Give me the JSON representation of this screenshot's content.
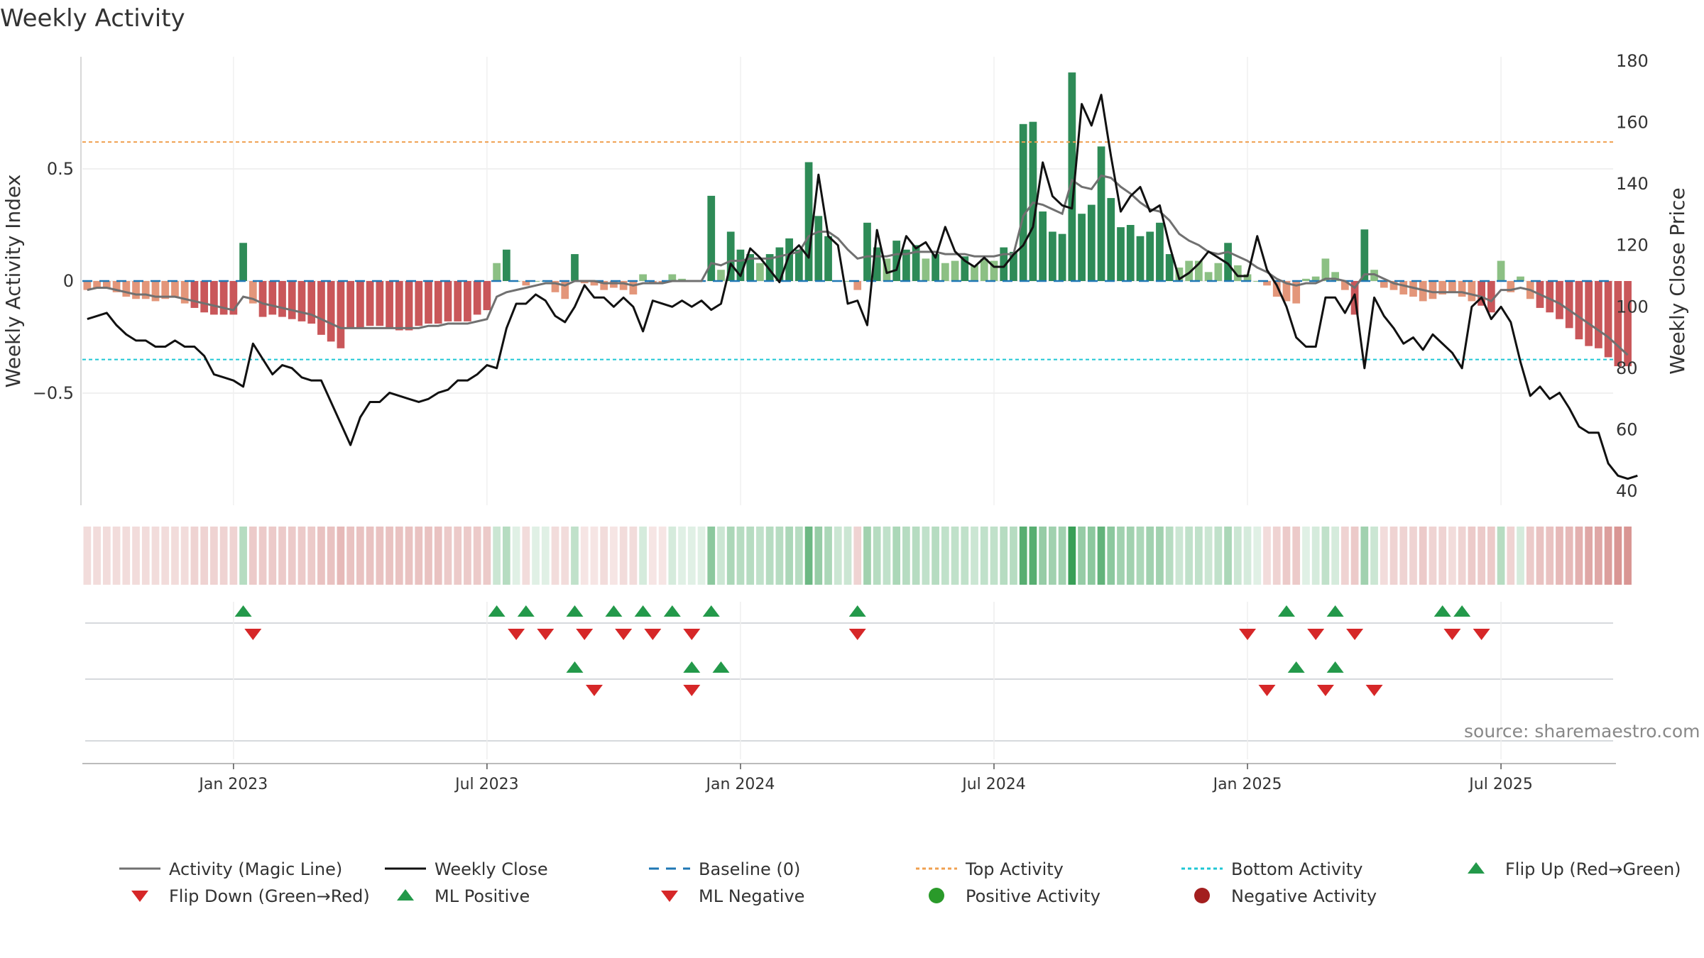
{
  "title": "Weekly Activity",
  "source": "source: sharemaestro.com",
  "chart_data": {
    "type": "bar",
    "title": "Weekly Activity",
    "ylabel": "Weekly Activity Index",
    "y2label": "Weekly Close Price",
    "ylim": [
      -0.99,
      0.99
    ],
    "y2lim": [
      40,
      180
    ],
    "yticks": [
      {
        "v": 0.5,
        "label": "0.5"
      },
      {
        "v": 0,
        "label": "0"
      },
      {
        "v": -0.5,
        "label": "−0.5"
      }
    ],
    "y2ticks": [
      40,
      60,
      80,
      100,
      120,
      140,
      160,
      180
    ],
    "xticks": [
      {
        "week": 15,
        "label": "Jan 2023"
      },
      {
        "week": 41,
        "label": "Jul 2023"
      },
      {
        "week": 67,
        "label": "Jan 2024"
      },
      {
        "week": 93,
        "label": "Jul 2024"
      },
      {
        "week": 119,
        "label": "Jan 2025"
      },
      {
        "week": 145,
        "label": "Jul 2025"
      }
    ],
    "top_activity": 0.62,
    "bottom_activity": -0.35,
    "baseline": 0,
    "weeks": 157,
    "activity": [
      -0.04,
      -0.03,
      -0.03,
      -0.05,
      -0.07,
      -0.08,
      -0.08,
      -0.09,
      -0.08,
      -0.07,
      -0.1,
      -0.12,
      -0.14,
      -0.15,
      -0.15,
      -0.15,
      0.17,
      -0.1,
      -0.16,
      -0.15,
      -0.16,
      -0.17,
      -0.18,
      -0.19,
      -0.24,
      -0.27,
      -0.3,
      -0.21,
      -0.21,
      -0.2,
      -0.2,
      -0.21,
      -0.22,
      -0.22,
      -0.2,
      -0.19,
      -0.19,
      -0.18,
      -0.18,
      -0.18,
      -0.15,
      -0.13,
      0.08,
      0.14,
      0.0,
      -0.02,
      0.0,
      0.0,
      -0.05,
      -0.08,
      0.12,
      -0.01,
      -0.02,
      -0.04,
      -0.03,
      -0.04,
      -0.06,
      0.03,
      -0.01,
      -0.01,
      0.03,
      0.01,
      0.0,
      0.0,
      0.38,
      0.05,
      0.22,
      0.14,
      0.12,
      0.08,
      0.12,
      0.15,
      0.19,
      0.14,
      0.53,
      0.29,
      0.2,
      0.0,
      0.0,
      -0.04,
      0.26,
      0.15,
      0.1,
      0.18,
      0.14,
      0.16,
      0.1,
      0.12,
      0.08,
      0.09,
      0.11,
      0.07,
      0.1,
      0.09,
      0.15,
      0.13,
      0.7,
      0.71,
      0.31,
      0.22,
      0.21,
      0.93,
      0.3,
      0.34,
      0.6,
      0.37,
      0.24,
      0.25,
      0.2,
      0.22,
      0.26,
      0.12,
      0.06,
      0.09,
      0.09,
      0.04,
      0.08,
      0.17,
      0.07,
      0.03,
      0.0,
      -0.02,
      -0.07,
      -0.09,
      -0.1,
      0.01,
      0.02,
      0.1,
      0.04,
      -0.04,
      -0.15,
      0.23,
      0.05,
      -0.03,
      -0.04,
      -0.06,
      -0.07,
      -0.09,
      -0.08,
      -0.06,
      -0.05,
      -0.07,
      -0.09,
      -0.11,
      -0.14,
      0.09,
      -0.05,
      0.02,
      -0.08,
      -0.12,
      -0.14,
      -0.17,
      -0.21,
      -0.26,
      -0.29,
      -0.3,
      -0.34,
      -0.38,
      -0.38
    ],
    "magic_line": [
      -0.04,
      -0.03,
      -0.03,
      -0.04,
      -0.05,
      -0.06,
      -0.06,
      -0.07,
      -0.07,
      -0.07,
      -0.08,
      -0.09,
      -0.1,
      -0.11,
      -0.12,
      -0.13,
      -0.07,
      -0.08,
      -0.1,
      -0.11,
      -0.12,
      -0.13,
      -0.14,
      -0.15,
      -0.17,
      -0.19,
      -0.21,
      -0.21,
      -0.21,
      -0.21,
      -0.21,
      -0.21,
      -0.21,
      -0.21,
      -0.21,
      -0.2,
      -0.2,
      -0.19,
      -0.19,
      -0.19,
      -0.18,
      -0.17,
      -0.07,
      -0.05,
      -0.04,
      -0.03,
      -0.02,
      -0.01,
      -0.01,
      -0.02,
      0.0,
      0.0,
      0.0,
      -0.01,
      -0.01,
      -0.01,
      -0.02,
      -0.01,
      -0.01,
      -0.01,
      0.0,
      0.0,
      0.0,
      0.0,
      0.08,
      0.07,
      0.09,
      0.09,
      0.1,
      0.1,
      0.1,
      0.11,
      0.12,
      0.13,
      0.2,
      0.22,
      0.22,
      0.19,
      0.14,
      0.1,
      0.11,
      0.11,
      0.11,
      0.12,
      0.12,
      0.13,
      0.13,
      0.13,
      0.12,
      0.12,
      0.12,
      0.11,
      0.11,
      0.11,
      0.12,
      0.12,
      0.29,
      0.35,
      0.34,
      0.32,
      0.3,
      0.45,
      0.42,
      0.41,
      0.47,
      0.46,
      0.42,
      0.39,
      0.35,
      0.32,
      0.31,
      0.27,
      0.21,
      0.18,
      0.16,
      0.13,
      0.12,
      0.13,
      0.11,
      0.09,
      0.06,
      0.04,
      0.01,
      -0.01,
      -0.02,
      -0.01,
      -0.01,
      0.01,
      0.01,
      0.0,
      -0.03,
      0.03,
      0.03,
      0.01,
      -0.01,
      -0.02,
      -0.03,
      -0.04,
      -0.05,
      -0.05,
      -0.05,
      -0.05,
      -0.06,
      -0.07,
      -0.09,
      -0.04,
      -0.04,
      -0.03,
      -0.04,
      -0.06,
      -0.08,
      -0.1,
      -0.13,
      -0.16,
      -0.19,
      -0.22,
      -0.25,
      -0.29,
      -0.33
    ],
    "close": [
      96,
      97,
      98,
      94,
      91,
      89,
      89,
      87,
      87,
      89,
      87,
      87,
      84,
      78,
      77,
      76,
      74,
      88,
      83,
      78,
      81,
      80,
      77,
      76,
      76,
      69,
      62,
      55,
      64,
      69,
      69,
      72,
      71,
      70,
      69,
      70,
      72,
      73,
      76,
      76,
      78,
      81,
      80,
      93,
      101,
      101,
      104,
      102,
      97,
      95,
      100,
      107,
      103,
      103,
      100,
      103,
      100,
      92,
      102,
      101,
      100,
      102,
      100,
      102,
      99,
      101,
      114,
      110,
      119,
      116,
      112,
      108,
      117,
      120,
      116,
      143,
      123,
      120,
      101,
      102,
      94,
      125,
      111,
      112,
      123,
      119,
      121,
      116,
      126,
      118,
      115,
      113,
      116,
      113,
      113,
      117,
      120,
      126,
      147,
      136,
      133,
      132,
      166,
      159,
      169,
      149,
      131,
      136,
      139,
      131,
      133,
      120,
      109,
      111,
      114,
      118,
      116,
      114,
      110,
      110,
      123,
      112,
      107,
      100,
      90,
      87,
      87,
      103,
      103,
      98,
      104,
      80,
      103,
      97,
      93,
      88,
      90,
      86,
      91,
      88,
      85,
      80,
      100,
      103,
      96,
      100,
      95,
      82,
      71,
      74,
      70,
      72,
      67,
      61,
      59,
      59,
      49,
      45,
      44,
      45
    ],
    "heat_alpha": [
      0.2,
      0.2,
      0.2,
      0.2,
      0.2,
      0.2,
      0.2,
      0.2,
      0.2,
      0.2,
      0.2,
      0.25,
      0.25,
      0.25,
      0.25,
      0.25,
      0.35,
      0.3,
      0.3,
      0.3,
      0.3,
      0.3,
      0.3,
      0.3,
      0.35,
      0.35,
      0.4,
      0.35,
      0.35,
      0.35,
      0.35,
      0.35,
      0.35,
      0.35,
      0.35,
      0.35,
      0.35,
      0.3,
      0.3,
      0.3,
      0.3,
      0.3,
      0.25,
      0.35,
      0.15,
      0.2,
      0.15,
      0.15,
      0.2,
      0.2,
      0.3,
      0.15,
      0.15,
      0.2,
      0.15,
      0.2,
      0.2,
      0.2,
      0.15,
      0.15,
      0.2,
      0.15,
      0.15,
      0.15,
      0.55,
      0.25,
      0.4,
      0.35,
      0.35,
      0.3,
      0.35,
      0.35,
      0.4,
      0.35,
      0.7,
      0.5,
      0.4,
      0.25,
      0.25,
      0.25,
      0.45,
      0.35,
      0.3,
      0.4,
      0.35,
      0.35,
      0.3,
      0.35,
      0.3,
      0.3,
      0.3,
      0.25,
      0.3,
      0.3,
      0.35,
      0.35,
      0.8,
      0.8,
      0.5,
      0.45,
      0.45,
      0.95,
      0.5,
      0.55,
      0.75,
      0.55,
      0.45,
      0.45,
      0.4,
      0.45,
      0.45,
      0.35,
      0.25,
      0.3,
      0.3,
      0.25,
      0.3,
      0.4,
      0.25,
      0.2,
      0.15,
      0.2,
      0.25,
      0.3,
      0.3,
      0.15,
      0.2,
      0.3,
      0.2,
      0.25,
      0.3,
      0.45,
      0.25,
      0.2,
      0.25,
      0.25,
      0.25,
      0.3,
      0.25,
      0.25,
      0.2,
      0.25,
      0.3,
      0.3,
      0.3,
      0.35,
      0.25,
      0.2,
      0.3,
      0.35,
      0.35,
      0.4,
      0.4,
      0.45,
      0.5,
      0.5,
      0.55,
      0.6,
      0.6
    ],
    "flip_up_weeks": [
      16,
      42,
      45,
      50,
      54,
      57,
      60,
      64,
      79,
      123,
      128,
      139,
      141
    ],
    "flip_down_weeks": [
      17,
      44,
      47,
      51,
      55,
      58,
      62,
      79,
      119,
      126,
      130,
      140,
      143
    ],
    "ml_positive_weeks": [
      50,
      62,
      65,
      124,
      128
    ],
    "ml_negative_weeks": [
      52,
      62,
      121,
      127,
      132
    ],
    "colors": {
      "positive_strong": "#2e8b57",
      "positive_light": "#8cc084",
      "negative_strong": "#c9575a",
      "negative_light": "#e3967a",
      "close": "#111111",
      "magic": "#707070",
      "baseline": "#1f77b4",
      "top": "#f0a050",
      "bottom": "#1fc7d4",
      "flip_up": "#23994a",
      "flip_down": "#d62728",
      "pos_dot": "#2a9a2a",
      "neg_dot": "#a31f1f"
    },
    "legend": [
      "Activity (Magic Line)",
      "Weekly Close",
      "Baseline (0)",
      "Top Activity",
      "Bottom Activity",
      "Flip Up (Red→Green)",
      "Flip Down (Green→Red)",
      "ML Positive",
      "ML Negative",
      "Positive Activity",
      "Negative Activity"
    ]
  }
}
